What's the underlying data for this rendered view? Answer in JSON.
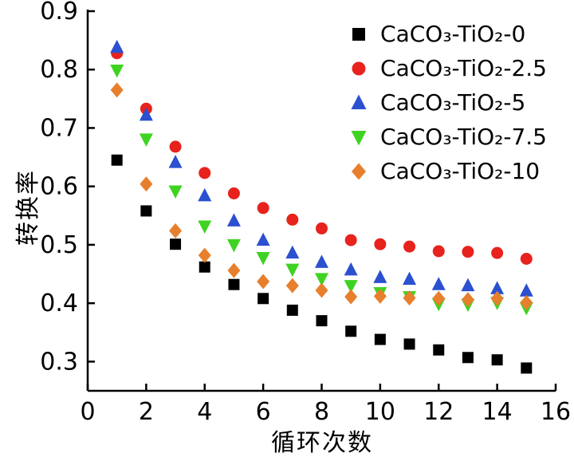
{
  "chart_data": {
    "type": "scatter",
    "title": "",
    "xlabel": "循环次数",
    "ylabel": "转换率",
    "xlim": [
      0,
      16
    ],
    "ylim": [
      0.25,
      0.9
    ],
    "x_ticks": [
      0,
      2,
      4,
      6,
      8,
      10,
      12,
      14,
      16
    ],
    "y_ticks": [
      0.3,
      0.4,
      0.5,
      0.6,
      0.7,
      0.8,
      0.9
    ],
    "grid": false,
    "legend_position": "top-right",
    "x": [
      1,
      2,
      3,
      4,
      5,
      6,
      7,
      8,
      9,
      10,
      11,
      12,
      13,
      14,
      15
    ],
    "series": [
      {
        "name": "CaCO₃-TiO₂-0",
        "marker": "square",
        "color": "#000000",
        "values": [
          0.645,
          0.558,
          0.501,
          0.462,
          0.432,
          0.408,
          0.388,
          0.37,
          0.352,
          0.338,
          0.33,
          0.32,
          0.307,
          0.303,
          0.289
        ]
      },
      {
        "name": "CaCO₃-TiO₂-2.5",
        "marker": "circle",
        "color": "#e8221c",
        "values": [
          0.828,
          0.733,
          0.668,
          0.623,
          0.588,
          0.563,
          0.543,
          0.528,
          0.508,
          0.501,
          0.497,
          0.489,
          0.488,
          0.486,
          0.476
        ]
      },
      {
        "name": "CaCO₃-TiO₂-5",
        "marker": "triangle-up",
        "color": "#2b50d0",
        "values": [
          0.838,
          0.722,
          0.641,
          0.584,
          0.541,
          0.508,
          0.486,
          0.47,
          0.457,
          0.444,
          0.441,
          0.432,
          0.43,
          0.425,
          0.421
        ]
      },
      {
        "name": "CaCO₃-TiO₂-7.5",
        "marker": "triangle-down",
        "color": "#3fd321",
        "values": [
          0.799,
          0.681,
          0.592,
          0.532,
          0.5,
          0.478,
          0.458,
          0.442,
          0.43,
          0.418,
          0.411,
          0.399,
          0.398,
          0.401,
          0.392
        ]
      },
      {
        "name": "CaCO₃-TiO₂-10",
        "marker": "diamond",
        "color": "#e87f2c",
        "values": [
          0.765,
          0.604,
          0.524,
          0.482,
          0.456,
          0.437,
          0.43,
          0.422,
          0.411,
          0.412,
          0.409,
          0.408,
          0.406,
          0.408,
          0.401
        ]
      }
    ]
  }
}
